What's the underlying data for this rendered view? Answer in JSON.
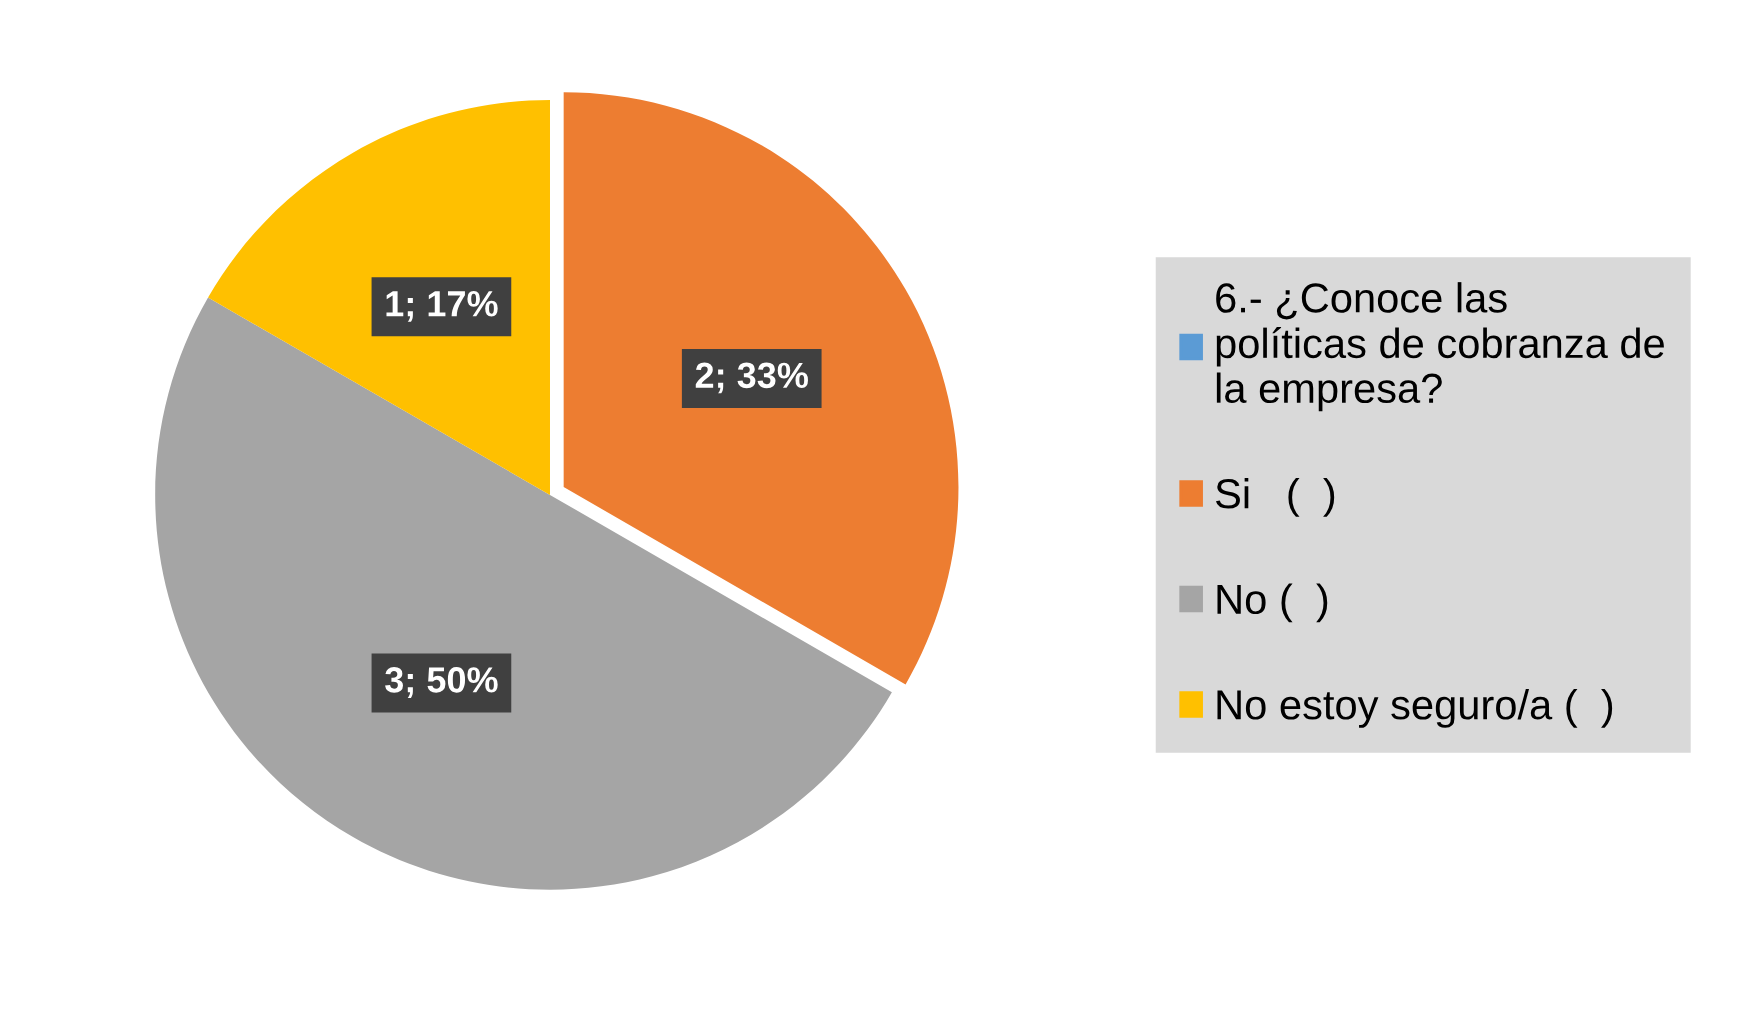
{
  "chart_data": {
    "type": "pie",
    "categories": [
      "6.- ¿Conoce las políticas de cobranza de la empresa?",
      "Si   (  )",
      "No (  )",
      "No estoy seguro/a (  )"
    ],
    "values": [
      null,
      2,
      3,
      1
    ],
    "colors": [
      "#5b9bd5",
      "#ed7d31",
      "#a5a5a5",
      "#ffc000"
    ],
    "value_labels": [
      null,
      "2; 33%",
      "3; 50%",
      "1; 17%"
    ],
    "legend": "right"
  }
}
